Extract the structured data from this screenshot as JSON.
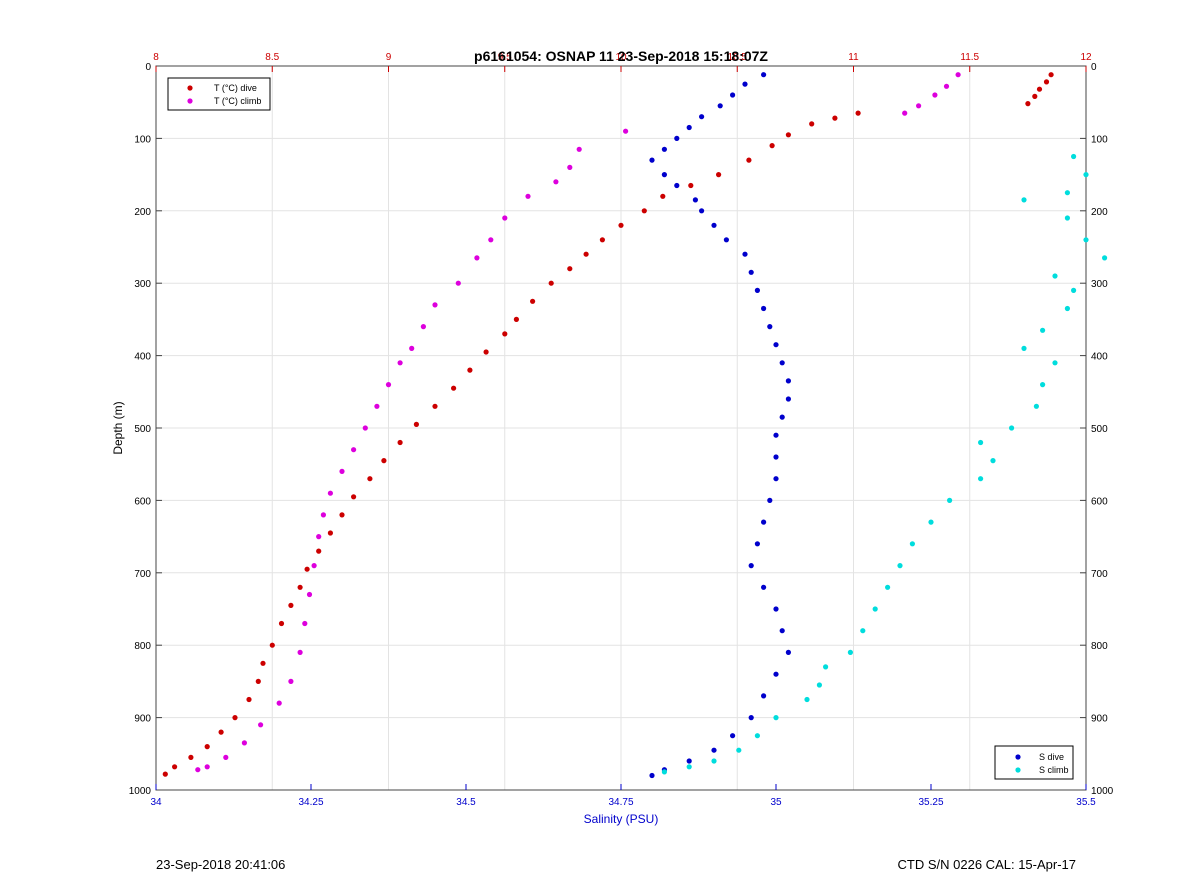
{
  "chart_data": {
    "type": "scatter",
    "title": "p6161054: OSNAP 11 23-Sep-2018 15:18:07Z",
    "ylabel": "Depth (m)",
    "y_reversed": true,
    "ylim": [
      0,
      1000
    ],
    "yticks": [
      "0",
      "100",
      "200",
      "300",
      "400",
      "500",
      "600",
      "700",
      "800",
      "900",
      "1000"
    ],
    "x_bottom": {
      "label": "Salinity (PSU)",
      "lim": [
        34,
        35.5
      ],
      "ticks": [
        "34",
        "34.25",
        "34.5",
        "34.75",
        "35",
        "35.25",
        "35.5"
      ],
      "color": "#0000cc"
    },
    "x_top": {
      "lim": [
        8,
        12
      ],
      "ticks": [
        "8",
        "8.5",
        "9",
        "9.5",
        "10",
        "10.5",
        "11",
        "11.5",
        "12"
      ],
      "color": "#cc0000"
    },
    "grid": true,
    "legends": {
      "top_left": [
        "T (°C) dive",
        "T (°C) climb"
      ],
      "bottom_right": [
        "S dive",
        "S climb"
      ]
    },
    "series": [
      {
        "name": "T (°C) dive",
        "axis": "top",
        "color": "#cc0000",
        "points": [
          [
            11.85,
            12
          ],
          [
            11.83,
            22
          ],
          [
            11.8,
            32
          ],
          [
            11.78,
            42
          ],
          [
            11.75,
            52
          ],
          [
            11.02,
            65
          ],
          [
            10.92,
            72
          ],
          [
            10.82,
            80
          ],
          [
            10.72,
            95
          ],
          [
            10.65,
            110
          ],
          [
            10.55,
            130
          ],
          [
            10.42,
            150
          ],
          [
            10.3,
            165
          ],
          [
            10.18,
            180
          ],
          [
            10.1,
            200
          ],
          [
            10.0,
            220
          ],
          [
            9.92,
            240
          ],
          [
            9.85,
            260
          ],
          [
            9.78,
            280
          ],
          [
            9.7,
            300
          ],
          [
            9.62,
            325
          ],
          [
            9.55,
            350
          ],
          [
            9.5,
            370
          ],
          [
            9.42,
            395
          ],
          [
            9.35,
            420
          ],
          [
            9.28,
            445
          ],
          [
            9.2,
            470
          ],
          [
            9.12,
            495
          ],
          [
            9.05,
            520
          ],
          [
            8.98,
            545
          ],
          [
            8.92,
            570
          ],
          [
            8.85,
            595
          ],
          [
            8.8,
            620
          ],
          [
            8.75,
            645
          ],
          [
            8.7,
            670
          ],
          [
            8.65,
            695
          ],
          [
            8.62,
            720
          ],
          [
            8.58,
            745
          ],
          [
            8.54,
            770
          ],
          [
            8.5,
            800
          ],
          [
            8.46,
            825
          ],
          [
            8.44,
            850
          ],
          [
            8.4,
            875
          ],
          [
            8.34,
            900
          ],
          [
            8.28,
            920
          ],
          [
            8.22,
            940
          ],
          [
            8.15,
            955
          ],
          [
            8.08,
            968
          ],
          [
            8.04,
            978
          ]
        ]
      },
      {
        "name": "T (°C) climb",
        "axis": "top",
        "color": "#dd00dd",
        "points": [
          [
            11.45,
            12
          ],
          [
            11.4,
            28
          ],
          [
            11.35,
            40
          ],
          [
            11.28,
            55
          ],
          [
            11.22,
            65
          ],
          [
            10.02,
            90
          ],
          [
            9.82,
            115
          ],
          [
            9.78,
            140
          ],
          [
            9.72,
            160
          ],
          [
            9.6,
            180
          ],
          [
            9.5,
            210
          ],
          [
            9.44,
            240
          ],
          [
            9.38,
            265
          ],
          [
            9.3,
            300
          ],
          [
            9.2,
            330
          ],
          [
            9.15,
            360
          ],
          [
            9.1,
            390
          ],
          [
            9.05,
            410
          ],
          [
            9.0,
            440
          ],
          [
            8.95,
            470
          ],
          [
            8.9,
            500
          ],
          [
            8.85,
            530
          ],
          [
            8.8,
            560
          ],
          [
            8.75,
            590
          ],
          [
            8.72,
            620
          ],
          [
            8.7,
            650
          ],
          [
            8.68,
            690
          ],
          [
            8.66,
            730
          ],
          [
            8.64,
            770
          ],
          [
            8.62,
            810
          ],
          [
            8.58,
            850
          ],
          [
            8.53,
            880
          ],
          [
            8.45,
            910
          ],
          [
            8.38,
            935
          ],
          [
            8.3,
            955
          ],
          [
            8.22,
            968
          ],
          [
            8.18,
            972
          ]
        ]
      },
      {
        "name": "S dive",
        "axis": "bottom",
        "color": "#0000cc",
        "points": [
          [
            34.98,
            12
          ],
          [
            34.95,
            25
          ],
          [
            34.93,
            40
          ],
          [
            34.91,
            55
          ],
          [
            34.88,
            70
          ],
          [
            34.86,
            85
          ],
          [
            34.84,
            100
          ],
          [
            34.82,
            115
          ],
          [
            34.8,
            130
          ],
          [
            34.82,
            150
          ],
          [
            34.84,
            165
          ],
          [
            34.87,
            185
          ],
          [
            34.88,
            200
          ],
          [
            34.9,
            220
          ],
          [
            34.92,
            240
          ],
          [
            34.95,
            260
          ],
          [
            34.96,
            285
          ],
          [
            34.97,
            310
          ],
          [
            34.98,
            335
          ],
          [
            34.99,
            360
          ],
          [
            35.0,
            385
          ],
          [
            35.01,
            410
          ],
          [
            35.02,
            435
          ],
          [
            35.02,
            460
          ],
          [
            35.01,
            485
          ],
          [
            35.0,
            510
          ],
          [
            35.0,
            540
          ],
          [
            35.0,
            570
          ],
          [
            34.99,
            600
          ],
          [
            34.98,
            630
          ],
          [
            34.97,
            660
          ],
          [
            34.96,
            690
          ],
          [
            34.98,
            720
          ],
          [
            35.0,
            750
          ],
          [
            35.01,
            780
          ],
          [
            35.02,
            810
          ],
          [
            35.0,
            840
          ],
          [
            34.98,
            870
          ],
          [
            34.96,
            900
          ],
          [
            34.93,
            925
          ],
          [
            34.9,
            945
          ],
          [
            34.86,
            960
          ],
          [
            34.82,
            972
          ],
          [
            34.8,
            980
          ]
        ]
      },
      {
        "name": "S climb",
        "axis": "bottom",
        "color": "#00dddd",
        "points": [
          [
            35.48,
            125
          ],
          [
            35.5,
            150
          ],
          [
            35.47,
            175
          ],
          [
            35.4,
            185
          ],
          [
            35.47,
            210
          ],
          [
            35.5,
            240
          ],
          [
            35.53,
            265
          ],
          [
            35.45,
            290
          ],
          [
            35.48,
            310
          ],
          [
            35.47,
            335
          ],
          [
            35.43,
            365
          ],
          [
            35.4,
            390
          ],
          [
            35.45,
            410
          ],
          [
            35.43,
            440
          ],
          [
            35.42,
            470
          ],
          [
            35.38,
            500
          ],
          [
            35.33,
            520
          ],
          [
            35.35,
            545
          ],
          [
            35.33,
            570
          ],
          [
            35.28,
            600
          ],
          [
            35.25,
            630
          ],
          [
            35.22,
            660
          ],
          [
            35.2,
            690
          ],
          [
            35.18,
            720
          ],
          [
            35.16,
            750
          ],
          [
            35.14,
            780
          ],
          [
            35.12,
            810
          ],
          [
            35.08,
            830
          ],
          [
            35.07,
            855
          ],
          [
            35.05,
            875
          ],
          [
            35.0,
            900
          ],
          [
            34.97,
            925
          ],
          [
            34.94,
            945
          ],
          [
            34.9,
            960
          ],
          [
            34.86,
            968
          ],
          [
            34.82,
            975
          ]
        ]
      }
    ]
  },
  "footer": {
    "left": "23-Sep-2018 20:41:06",
    "right": "CTD S/N 0226  CAL: 15-Apr-17"
  }
}
